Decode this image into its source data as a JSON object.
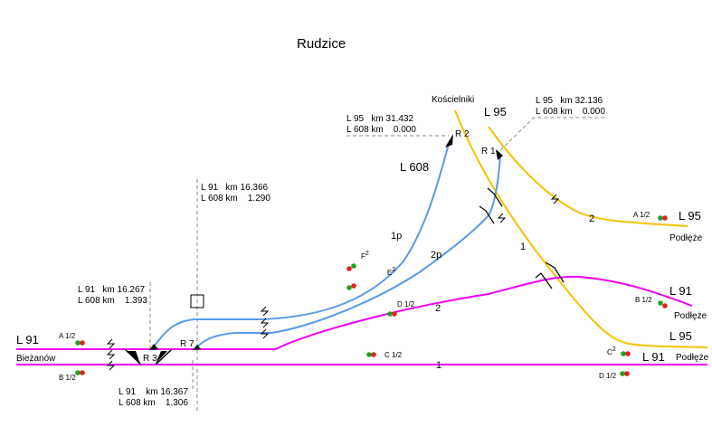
{
  "title": "Rudzice",
  "colors": {
    "l91": "#ee00ee",
    "l608": "#5a9ae6",
    "l95": "#f5c200",
    "signal_red": "#e02020",
    "signal_green": "#20a020",
    "dashed": "#888888"
  },
  "line_names": {
    "l91_left": "L 91",
    "l91_right_upper": "L 91",
    "l91_right_lower": "L 91",
    "l95_top": "L 95",
    "l95_right_upper": "L 95",
    "l95_right_lower": "L 95",
    "l608": "L 608"
  },
  "places": {
    "biezanow": "Bieżanów",
    "koscielniki": "Kościelniki",
    "podleze_1": "Podłęże",
    "podleze_2": "Podłęże",
    "podleze_3": "Podłęże"
  },
  "km_markers": {
    "r2_l95": "L 95   km 31.432",
    "r2_l608": "L 608 km    0.000",
    "r1_l95": "L 95   km 32.136",
    "r1_l608": "L 608 km    0.000",
    "r7_l91": "L 91   km 16.366",
    "r7_l608": "L 608 km    1.290",
    "r3_l91": "L 91   km 16.267",
    "r3_l608": "L 608 km    1.393",
    "bottom_l91": "L 91    km 16.367",
    "bottom_l608": "L 608 km    1.306"
  },
  "switches": {
    "r1": "R 1",
    "r2": "R 2",
    "r3": "R 3",
    "r7": "R 7"
  },
  "tracks": {
    "l608_1p": "1p",
    "l608_2p": "2p",
    "l91_2": "2",
    "l91_1": "1",
    "l95_1": "1",
    "l95_2": "2"
  },
  "signals": {
    "a12_left": "A 1/2",
    "b12_left": "B 1/2",
    "c12": "C 1/2",
    "d12_mid": "D 1/2",
    "e2_base": "E",
    "e2_sup": "2",
    "f2_base": "F",
    "f2_sup": "2",
    "a12_right": "A 1/2",
    "b12_right": "B 1/2",
    "c2_base": "C",
    "c2_sup": "2",
    "d12_right": "D 1/2"
  }
}
